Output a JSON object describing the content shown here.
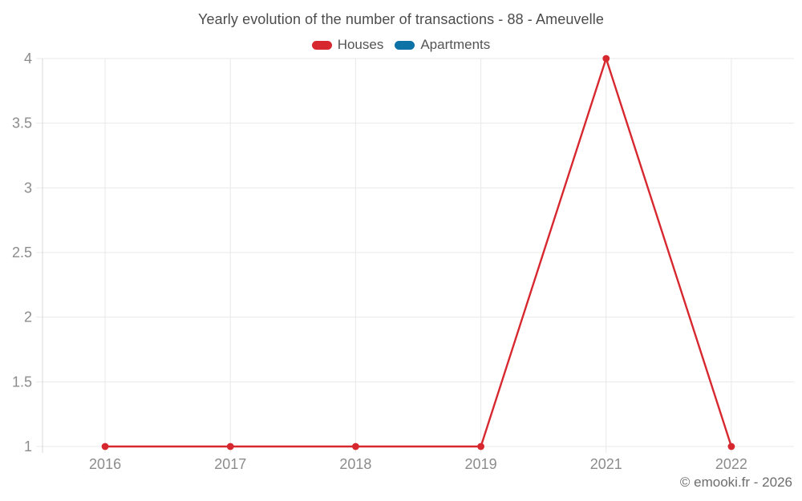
{
  "chart_data": {
    "type": "line",
    "title": "Yearly evolution of the number of transactions - 88 - Ameuvelle",
    "categories": [
      "2016",
      "2017",
      "2018",
      "2019",
      "2021",
      "2022"
    ],
    "series": [
      {
        "name": "Houses",
        "color": "#d7282f",
        "values": [
          1,
          1,
          1,
          1,
          4,
          1
        ]
      },
      {
        "name": "Apartments",
        "color": "#0d72a6",
        "values": []
      }
    ],
    "ylim": [
      1,
      4
    ],
    "ytick_step": 0.5,
    "ytick_labels": [
      "1",
      "1.5",
      "2",
      "2.5",
      "3",
      "3.5",
      "4"
    ],
    "grid": true,
    "legend_position": "top",
    "xlabel": "",
    "ylabel": ""
  },
  "footer": {
    "watermark": "© emooki.fr - 2026"
  },
  "colors": {
    "background": "#ffffff",
    "gridline": "#e8e8e8",
    "axis_line": "#d9d9d9",
    "tick_label": "#8c8c8c",
    "title_text": "#4c4c4c",
    "legend_text": "#545454",
    "watermark_text": "#6d6d6d"
  }
}
